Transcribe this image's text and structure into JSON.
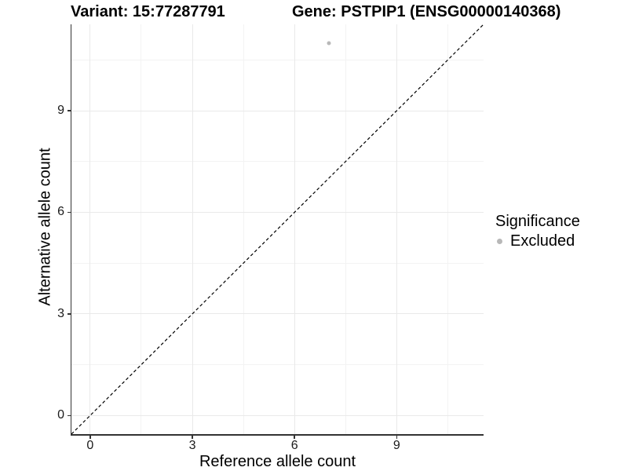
{
  "header": {
    "title_variant": "Variant: 15:77287791",
    "title_gene": "Gene: PSTPIP1 (ENSG00000140368)"
  },
  "chart_data": {
    "type": "scatter",
    "title_left": "Variant: 15:77287791",
    "title_right": "Gene: PSTPIP1 (ENSG00000140368)",
    "xlabel": "Reference allele count",
    "ylabel": "Alternative allele count",
    "xlim": [
      -0.55,
      11.55
    ],
    "ylim": [
      -0.55,
      11.55
    ],
    "x_major_ticks": [
      0,
      3,
      6,
      9
    ],
    "y_major_ticks": [
      0,
      3,
      6,
      9
    ],
    "x_minor_ticks": [
      1.5,
      4.5,
      7.5,
      10.5
    ],
    "y_minor_ticks": [
      1.5,
      4.5,
      7.5,
      10.5
    ],
    "x_tick_labels": [
      "0",
      "3",
      "6",
      "9"
    ],
    "y_tick_labels": [
      "0",
      "3",
      "6",
      "9"
    ],
    "grid": "major+minor",
    "identity_line": {
      "slope": 1,
      "intercept": 0,
      "style": "dashed",
      "color": "#000000"
    },
    "series": [
      {
        "name": "Excluded",
        "color": "#b8b8b8",
        "points": [
          {
            "x": 7,
            "y": 11
          }
        ]
      }
    ],
    "legend": {
      "title": "Significance",
      "position": "right",
      "items": [
        {
          "label": "Excluded",
          "color": "#b8b8b8",
          "marker": "circle"
        }
      ]
    }
  },
  "colors": {
    "background": "#ffffff",
    "grid_major": "#e9e9e9",
    "grid_minor": "#f3f3f3",
    "axis_line": "#333333",
    "point": "#b8b8b8",
    "text": "#000000"
  }
}
